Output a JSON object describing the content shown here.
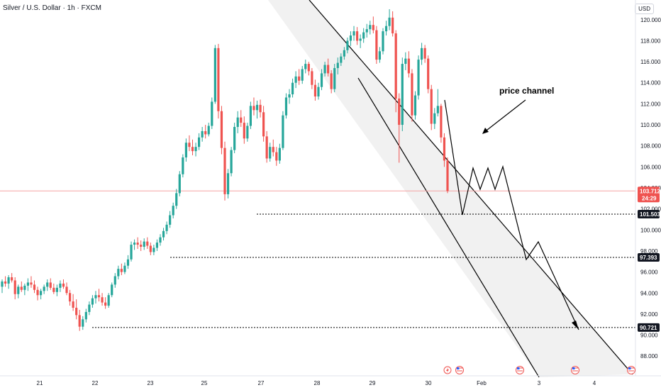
{
  "title": "Silver / U.S. Dollar · 1h · FXCM",
  "currency": "USD",
  "colors": {
    "up": "#26a69a",
    "down": "#ef5350",
    "channel_fill": "#f0f0f0",
    "price_line": "#f5a3a3",
    "level_badge": "#131722",
    "price_badge": "#ef5350"
  },
  "chart_data": {
    "type": "candlestick",
    "ylim": [
      86.8,
      121.2
    ],
    "y_ticks": [
      "88.000",
      "90.000",
      "92.000",
      "94.000",
      "96.000",
      "98.000",
      "100.000",
      "102.000",
      "104.000",
      "106.000",
      "108.000",
      "110.000",
      "112.000",
      "114.000",
      "116.000",
      "118.000",
      "120.000"
    ],
    "x_ticks": [
      "21",
      "22",
      "23",
      "25",
      "27",
      "28",
      "29",
      "30",
      "Feb",
      "3",
      "4"
    ],
    "current_price": "103.712",
    "countdown": "24:29",
    "levels": [
      {
        "value": "101.503",
        "from_day": "26.85"
      },
      {
        "value": "97.393",
        "from_day": "23.35"
      },
      {
        "value": "90.721",
        "from_day": "21.9"
      }
    ],
    "annotation": "price channel",
    "channel": {
      "upper": [
        [
          "20.5",
          124.5
        ],
        [
          "30.5",
          104.0
        ],
        [
          "31.25",
          86.8
        ]
      ],
      "lower": [
        [
          "20.5",
          130.0
        ],
        [
          "28.75",
          113.0
        ],
        [
          "31.25",
          86.8
        ]
      ]
    },
    "projection_path": [
      [
        "30.1",
        112.5
      ],
      [
        "30.35",
        101.5
      ],
      [
        "30.6",
        106.0
      ],
      [
        "30.9",
        103.8
      ],
      [
        "31.05",
        106.0
      ],
      [
        "31.15",
        103.8
      ],
      [
        "31.3",
        106.2
      ],
      [
        "31.6",
        97.4
      ],
      [
        "31.8",
        99.2
      ],
      [
        "32.3",
        90.5
      ]
    ],
    "events": [
      "30.0",
      "30.1",
      "31.75",
      "32.1",
      "33.1"
    ],
    "candles_key": "o,h,l,c",
    "candles": [
      [
        94.6,
        95.3,
        94.0,
        95.1
      ],
      [
        95.1,
        95.6,
        94.6,
        94.9
      ],
      [
        94.9,
        95.7,
        94.4,
        95.5
      ],
      [
        95.5,
        95.9,
        95.0,
        95.2
      ],
      [
        95.2,
        95.5,
        93.4,
        93.9
      ],
      [
        93.9,
        94.8,
        93.5,
        94.6
      ],
      [
        94.6,
        95.1,
        94.1,
        94.3
      ],
      [
        94.3,
        94.9,
        93.8,
        94.7
      ],
      [
        94.7,
        95.4,
        94.2,
        95.0
      ],
      [
        95.0,
        95.6,
        94.5,
        94.8
      ],
      [
        94.8,
        95.2,
        94.0,
        94.3
      ],
      [
        94.3,
        94.6,
        93.3,
        93.8
      ],
      [
        93.8,
        94.4,
        93.4,
        94.2
      ],
      [
        94.2,
        94.8,
        93.9,
        94.6
      ],
      [
        94.6,
        95.3,
        94.2,
        95.0
      ],
      [
        95.0,
        95.4,
        94.3,
        94.5
      ],
      [
        94.5,
        94.9,
        93.9,
        94.1
      ],
      [
        94.1,
        94.8,
        93.7,
        94.5
      ],
      [
        94.5,
        95.2,
        94.1,
        94.9
      ],
      [
        94.9,
        95.3,
        94.4,
        94.6
      ],
      [
        94.6,
        95.0,
        93.8,
        94.0
      ],
      [
        94.0,
        94.3,
        92.8,
        93.2
      ],
      [
        93.2,
        93.9,
        92.3,
        92.6
      ],
      [
        92.6,
        93.4,
        91.5,
        91.9
      ],
      [
        91.9,
        92.4,
        90.4,
        90.8
      ],
      [
        90.8,
        91.8,
        90.5,
        91.5
      ],
      [
        91.5,
        92.5,
        91.2,
        92.2
      ],
      [
        92.2,
        93.2,
        91.9,
        92.9
      ],
      [
        92.9,
        93.8,
        92.6,
        93.5
      ],
      [
        93.5,
        94.2,
        93.0,
        93.8
      ],
      [
        93.8,
        94.4,
        93.2,
        93.6
      ],
      [
        93.6,
        94.0,
        92.8,
        93.1
      ],
      [
        93.1,
        93.6,
        92.5,
        92.8
      ],
      [
        92.8,
        94.0,
        92.6,
        93.8
      ],
      [
        93.8,
        95.0,
        93.6,
        94.8
      ],
      [
        94.8,
        95.9,
        94.5,
        95.6
      ],
      [
        95.6,
        96.6,
        95.3,
        96.3
      ],
      [
        96.3,
        96.8,
        95.7,
        96.0
      ],
      [
        96.0,
        96.9,
        95.8,
        96.6
      ],
      [
        96.6,
        97.6,
        96.3,
        97.2
      ],
      [
        97.2,
        98.9,
        97.0,
        98.6
      ],
      [
        98.6,
        99.1,
        98.1,
        98.8
      ],
      [
        98.8,
        99.3,
        98.2,
        98.6
      ],
      [
        98.6,
        99.0,
        98.0,
        98.4
      ],
      [
        98.4,
        99.2,
        98.1,
        98.9
      ],
      [
        98.9,
        99.3,
        98.2,
        98.5
      ],
      [
        98.5,
        98.8,
        97.6,
        97.9
      ],
      [
        97.9,
        98.6,
        97.6,
        98.3
      ],
      [
        98.3,
        99.1,
        98.0,
        98.8
      ],
      [
        98.8,
        99.6,
        98.5,
        99.3
      ],
      [
        99.3,
        100.2,
        99.0,
        99.9
      ],
      [
        99.9,
        100.8,
        99.6,
        100.5
      ],
      [
        100.5,
        101.8,
        100.2,
        101.4
      ],
      [
        101.4,
        102.6,
        101.1,
        102.3
      ],
      [
        102.3,
        103.9,
        102.0,
        103.5
      ],
      [
        103.5,
        105.6,
        103.2,
        105.3
      ],
      [
        105.3,
        107.2,
        105.0,
        106.9
      ],
      [
        106.9,
        108.7,
        106.5,
        108.3
      ],
      [
        108.3,
        109.0,
        107.5,
        107.9
      ],
      [
        107.9,
        108.6,
        107.1,
        107.5
      ],
      [
        107.5,
        108.3,
        107.0,
        107.9
      ],
      [
        107.9,
        109.2,
        107.6,
        108.8
      ],
      [
        108.8,
        109.8,
        108.4,
        109.4
      ],
      [
        109.4,
        110.0,
        108.7,
        109.1
      ],
      [
        109.1,
        110.2,
        108.9,
        109.9
      ],
      [
        109.9,
        112.6,
        109.6,
        112.2
      ],
      [
        112.2,
        117.6,
        112.0,
        117.3
      ],
      [
        117.3,
        117.7,
        110.6,
        111.3
      ],
      [
        111.3,
        111.8,
        107.2,
        107.8
      ],
      [
        107.8,
        108.4,
        102.8,
        103.4
      ],
      [
        103.4,
        105.8,
        103.0,
        105.4
      ],
      [
        105.4,
        107.9,
        105.1,
        107.6
      ],
      [
        107.6,
        110.2,
        107.3,
        109.8
      ],
      [
        109.8,
        111.3,
        109.2,
        110.7
      ],
      [
        110.7,
        111.4,
        109.8,
        110.2
      ],
      [
        110.2,
        110.8,
        108.2,
        108.7
      ],
      [
        108.7,
        110.2,
        108.4,
        109.9
      ],
      [
        109.9,
        112.2,
        109.6,
        111.8
      ],
      [
        111.8,
        112.6,
        110.9,
        111.4
      ],
      [
        111.4,
        112.3,
        110.6,
        111.9
      ],
      [
        111.9,
        112.4,
        110.7,
        111.2
      ],
      [
        111.2,
        111.8,
        108.4,
        108.9
      ],
      [
        108.9,
        109.4,
        106.4,
        106.8
      ],
      [
        106.8,
        108.3,
        106.5,
        107.9
      ],
      [
        107.9,
        108.6,
        107.0,
        107.4
      ],
      [
        107.4,
        107.9,
        106.1,
        106.6
      ],
      [
        106.6,
        108.2,
        106.3,
        107.8
      ],
      [
        107.8,
        111.3,
        107.6,
        110.9
      ],
      [
        110.9,
        113.0,
        110.6,
        112.6
      ],
      [
        112.6,
        113.4,
        112.0,
        112.9
      ],
      [
        112.9,
        114.4,
        112.6,
        114.0
      ],
      [
        114.0,
        115.1,
        113.5,
        114.6
      ],
      [
        114.6,
        115.3,
        113.8,
        114.2
      ],
      [
        114.2,
        115.6,
        113.9,
        115.3
      ],
      [
        115.3,
        116.2,
        114.9,
        115.8
      ],
      [
        115.8,
        116.0,
        114.7,
        115.1
      ],
      [
        115.1,
        115.4,
        113.4,
        113.8
      ],
      [
        113.8,
        114.3,
        112.3,
        112.7
      ],
      [
        112.7,
        114.0,
        112.4,
        113.6
      ],
      [
        113.6,
        115.3,
        113.3,
        114.9
      ],
      [
        114.9,
        116.0,
        114.6,
        115.7
      ],
      [
        115.7,
        116.3,
        114.6,
        114.9
      ],
      [
        114.9,
        115.2,
        113.0,
        113.4
      ],
      [
        113.4,
        115.8,
        113.1,
        115.4
      ],
      [
        115.4,
        116.4,
        114.8,
        115.9
      ],
      [
        115.9,
        116.8,
        115.6,
        116.5
      ],
      [
        116.5,
        117.4,
        116.2,
        117.1
      ],
      [
        117.1,
        118.3,
        116.8,
        118.0
      ],
      [
        118.0,
        118.9,
        117.5,
        118.5
      ],
      [
        118.5,
        119.4,
        118.0,
        118.9
      ],
      [
        118.9,
        119.3,
        117.6,
        118.0
      ],
      [
        118.0,
        118.6,
        117.3,
        118.2
      ],
      [
        118.2,
        119.2,
        117.8,
        118.8
      ],
      [
        118.8,
        119.6,
        118.3,
        119.1
      ],
      [
        119.1,
        119.9,
        118.6,
        119.5
      ],
      [
        119.5,
        120.3,
        118.7,
        119.0
      ],
      [
        119.0,
        119.4,
        115.8,
        116.2
      ],
      [
        116.2,
        117.4,
        115.9,
        117.0
      ],
      [
        117.0,
        119.2,
        116.7,
        118.9
      ],
      [
        118.9,
        119.9,
        118.5,
        119.4
      ],
      [
        119.4,
        121.0,
        119.0,
        120.2
      ],
      [
        120.2,
        120.8,
        118.4,
        118.7
      ],
      [
        118.7,
        119.0,
        111.2,
        112.5
      ],
      [
        112.5,
        113.0,
        106.4,
        110.0
      ],
      [
        110.0,
        116.4,
        109.4,
        115.8
      ],
      [
        115.8,
        116.9,
        115.2,
        116.3
      ],
      [
        116.3,
        117.0,
        114.5,
        114.9
      ],
      [
        114.9,
        115.3,
        110.3,
        110.9
      ],
      [
        110.9,
        113.2,
        110.5,
        112.8
      ],
      [
        112.8,
        116.6,
        112.4,
        116.2
      ],
      [
        116.2,
        117.8,
        115.7,
        117.3
      ],
      [
        117.3,
        117.6,
        115.9,
        116.3
      ],
      [
        116.3,
        116.6,
        113.0,
        113.4
      ],
      [
        113.4,
        113.8,
        109.5,
        110.1
      ],
      [
        110.1,
        111.6,
        109.6,
        111.1
      ],
      [
        111.1,
        113.4,
        110.8,
        111.8
      ],
      [
        111.8,
        112.0,
        108.3,
        108.8
      ],
      [
        108.8,
        109.2,
        106.0,
        106.6
      ],
      [
        106.6,
        106.9,
        103.5,
        103.7
      ]
    ]
  }
}
